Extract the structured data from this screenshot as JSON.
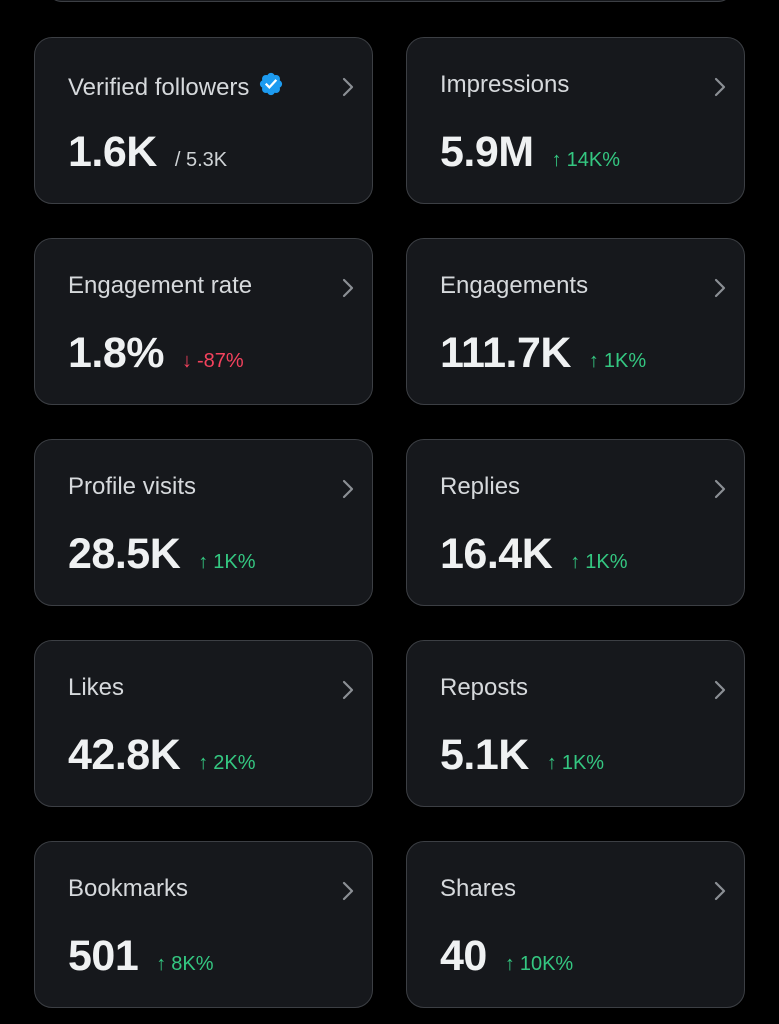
{
  "colors": {
    "background": "#000000",
    "card": "#16181c",
    "card_border": "#3c3f44",
    "positive": "#34c781",
    "negative": "#f4425d",
    "verified": "#1d9bf0"
  },
  "metrics": [
    {
      "label": "Verified followers",
      "value": "1.6K",
      "sub": "/ 5.3K",
      "verified_icon": "verified-badge-icon"
    },
    {
      "label": "Impressions",
      "value": "5.9M",
      "delta": "14K%",
      "direction": "up"
    },
    {
      "label": "Engagement rate",
      "value": "1.8%",
      "delta": "-87%",
      "direction": "down"
    },
    {
      "label": "Engagements",
      "value": "111.7K",
      "delta": "1K%",
      "direction": "up"
    },
    {
      "label": "Profile visits",
      "value": "28.5K",
      "delta": "1K%",
      "direction": "up"
    },
    {
      "label": "Replies",
      "value": "16.4K",
      "delta": "1K%",
      "direction": "up"
    },
    {
      "label": "Likes",
      "value": "42.8K",
      "delta": "2K%",
      "direction": "up"
    },
    {
      "label": "Reposts",
      "value": "5.1K",
      "delta": "1K%",
      "direction": "up"
    },
    {
      "label": "Bookmarks",
      "value": "501",
      "delta": "8K%",
      "direction": "up"
    },
    {
      "label": "Shares",
      "value": "40",
      "delta": "10K%",
      "direction": "up"
    }
  ],
  "arrows": {
    "up": "↑",
    "down": "↓"
  }
}
